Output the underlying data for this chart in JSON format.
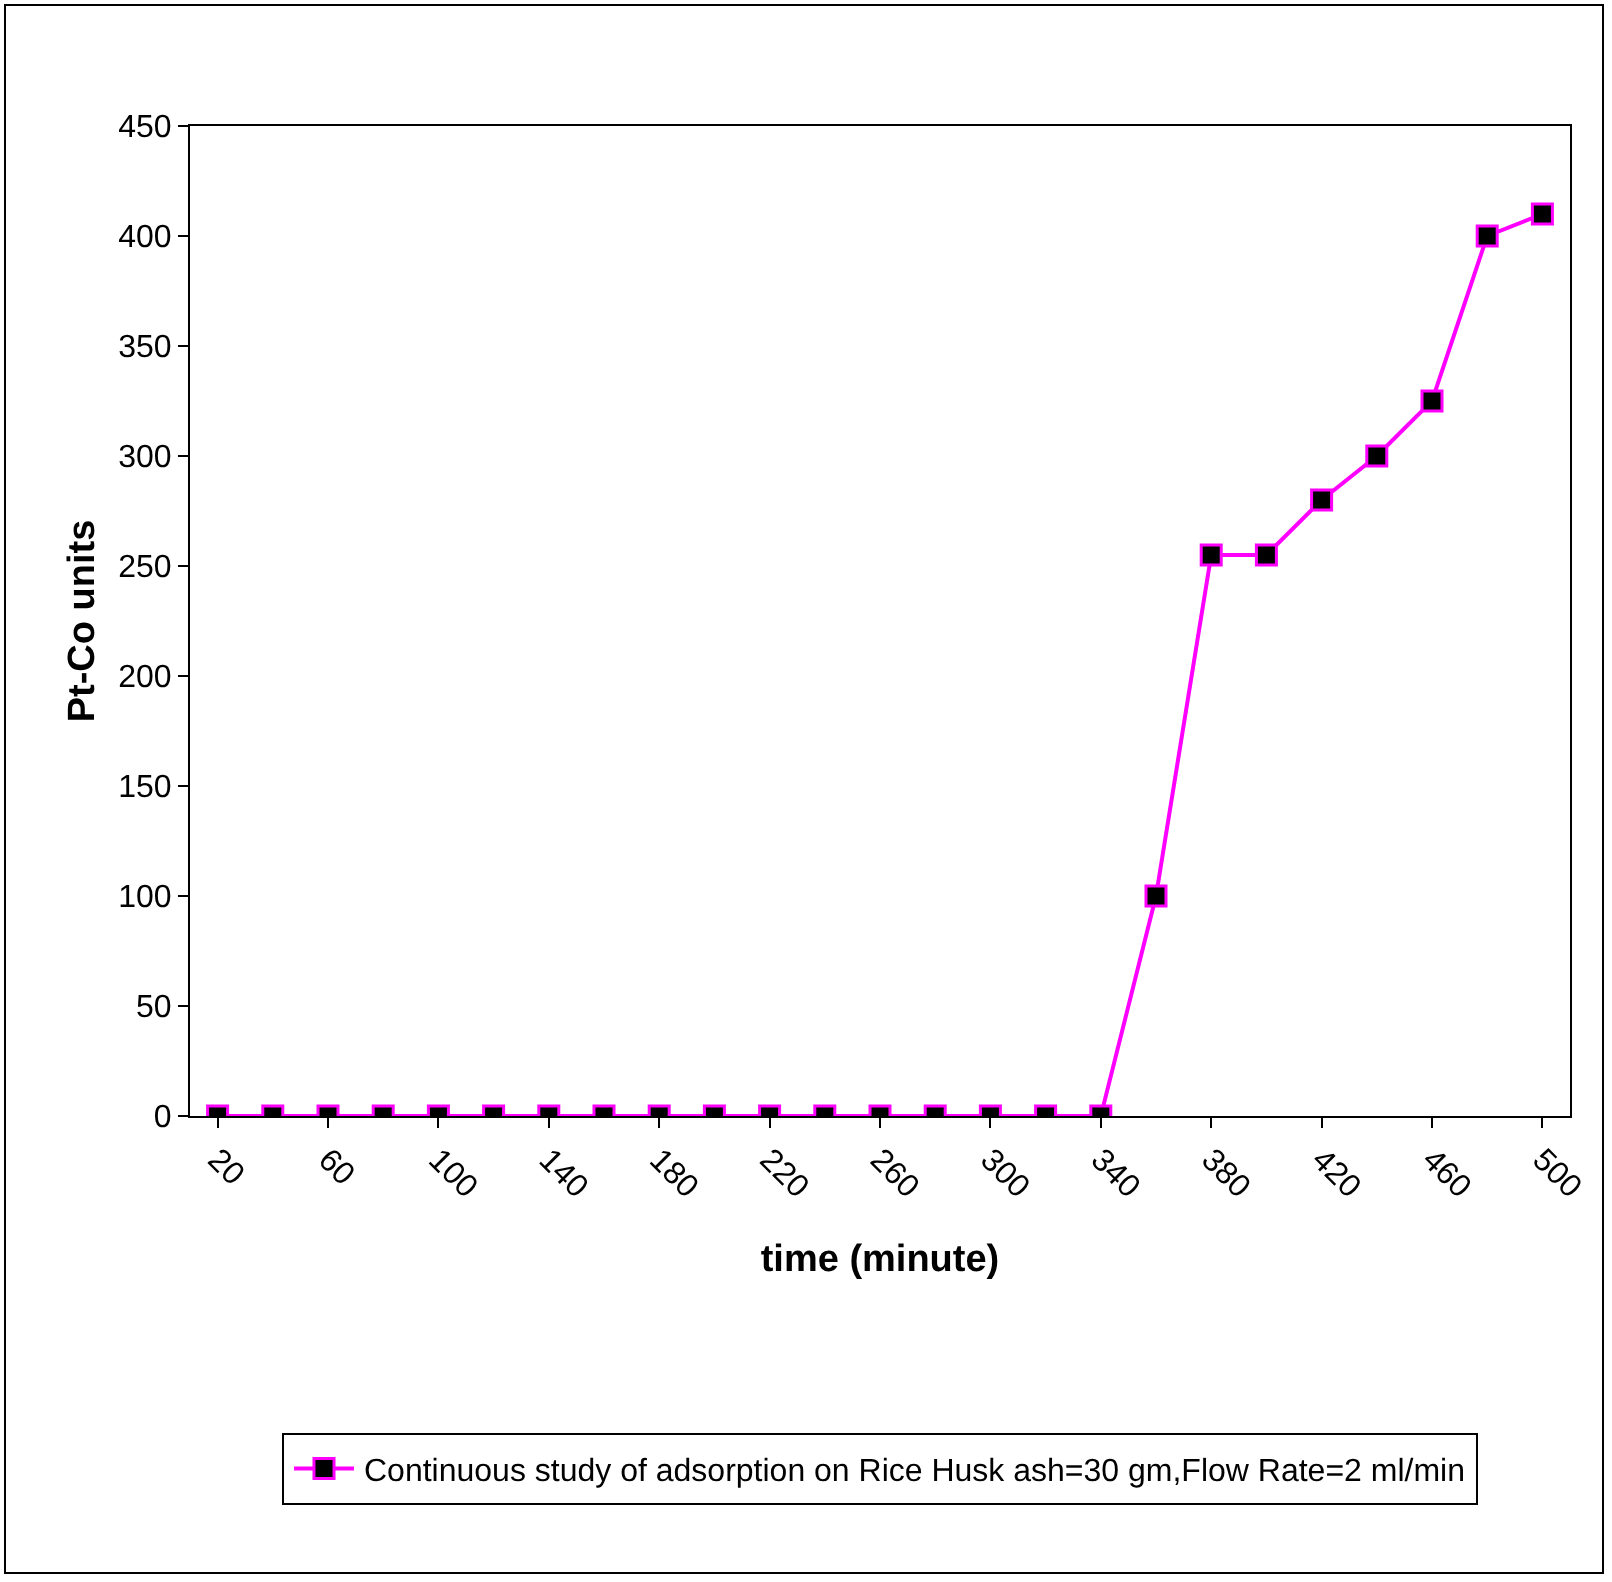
{
  "chart_data": {
    "type": "line",
    "xlabel": "time (minute)",
    "ylabel": "Pt-Co units",
    "categories": [
      "20",
      null,
      "60",
      null,
      "100",
      null,
      "140",
      null,
      "180",
      null,
      "220",
      null,
      "260",
      null,
      "300",
      null,
      "340",
      null,
      "380",
      null,
      "420",
      null,
      "460",
      null,
      "500"
    ],
    "series": [
      {
        "name": "Continuous study of adsorption on Rice Husk ash=30 gm,Flow Rate=2 ml/min",
        "color": "#ff00ff",
        "values": [
          0,
          0,
          0,
          0,
          0,
          0,
          0,
          0,
          0,
          0,
          0,
          0,
          0,
          0,
          0,
          0,
          0,
          100,
          255,
          255,
          280,
          300,
          325,
          400,
          410
        ]
      }
    ],
    "ylim": [
      0,
      450
    ],
    "yticks": [
      0,
      50,
      100,
      150,
      200,
      250,
      300,
      350,
      400,
      450
    ],
    "grid": false,
    "legend": "bottom",
    "marker": "square",
    "line_style": "solid"
  }
}
